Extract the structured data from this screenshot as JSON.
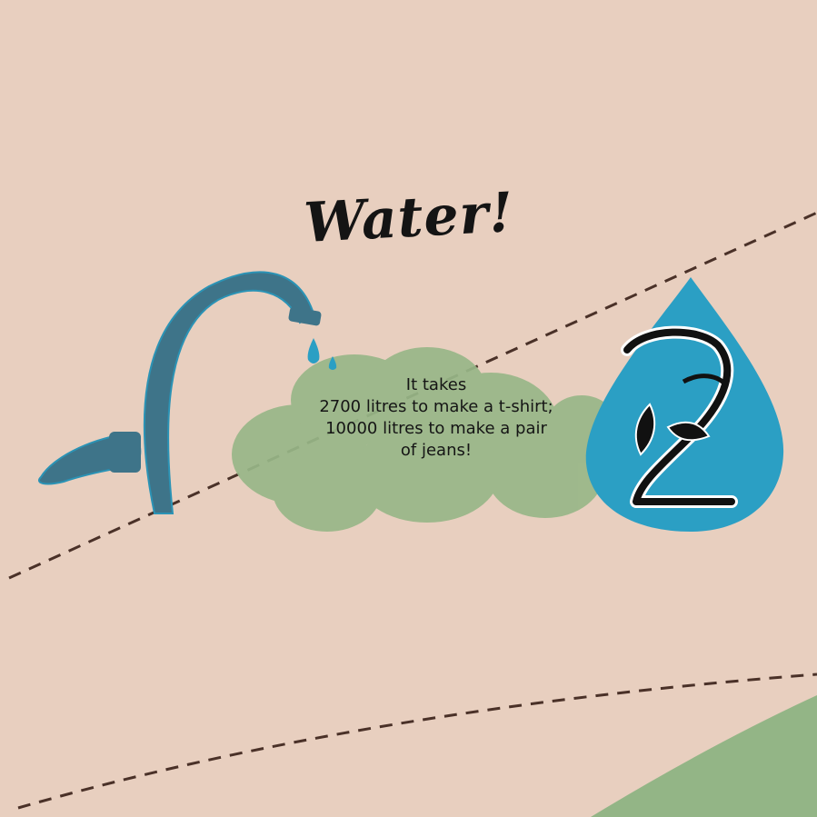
{
  "title": "Water!",
  "fact_lines": [
    "It takes",
    "2700 litres to make a t-shirt;",
    "10000 litres to make a pair",
    "of jeans!"
  ],
  "colors": {
    "background": "#e8cfbf",
    "blob": "#98b788",
    "faucet": "#3e7489",
    "drop": "#2b9fc4",
    "corner": "#93b586",
    "dash": "#4a3128"
  },
  "icons": [
    "faucet-icon",
    "water-drop-icon",
    "leaf-logo-icon"
  ]
}
